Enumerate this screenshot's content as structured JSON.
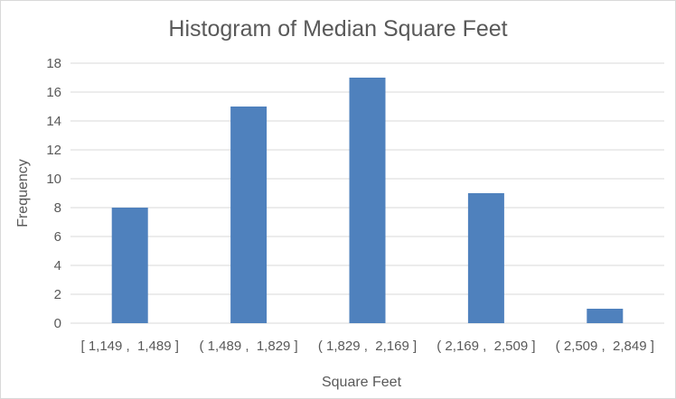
{
  "chart_data": {
    "type": "bar",
    "title": "Histogram of Median Square Feet",
    "xlabel": "Square Feet",
    "ylabel": "Frequency",
    "categories": [
      "[ 1,149 ,  1,489 ]",
      "( 1,489 ,  1,829 ]",
      "( 1,829 ,  2,169 ]",
      "( 2,169 ,  2,509 ]",
      "( 2,509 ,  2,849 ]"
    ],
    "values": [
      8,
      15,
      17,
      9,
      1
    ],
    "ylim": [
      0,
      18
    ],
    "yticks": [
      "0",
      "2",
      "4",
      "6",
      "8",
      "10",
      "12",
      "14",
      "16",
      "18"
    ],
    "grid": true,
    "legend": "none",
    "bar_color": "#4f81bd"
  }
}
